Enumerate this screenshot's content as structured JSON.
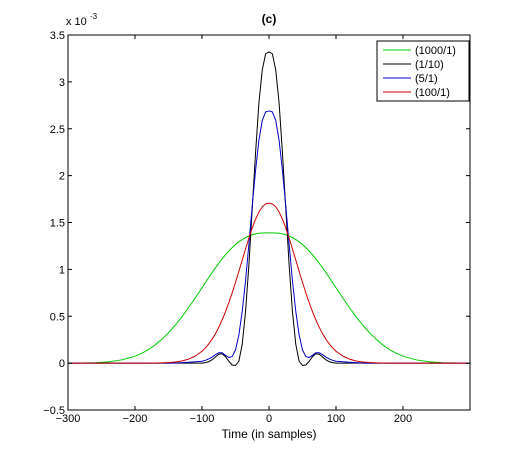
{
  "chart_data": {
    "type": "line",
    "title": "(c)",
    "xlabel": "Time (in samples)",
    "ylabel": "",
    "y_multiplier": {
      "base": "x 10",
      "exponent": "-3"
    },
    "xlim": [
      -300,
      300
    ],
    "ylim": [
      -0.5,
      3.5
    ],
    "x_ticks": [
      -300,
      -200,
      -100,
      0,
      100,
      200
    ],
    "x_tick_labels": [
      "−300",
      "−200",
      "−100",
      "0",
      "100",
      "200"
    ],
    "y_ticks": [
      -0.5,
      0,
      0.5,
      1,
      1.5,
      2,
      2.5,
      3,
      3.5
    ],
    "y_tick_labels": [
      "−0.5",
      "0",
      "0.5",
      "1",
      "1.5",
      "2",
      "2.5",
      "3",
      "3.5"
    ],
    "grid": false,
    "legend_position": "top-right",
    "x": [
      -300,
      -280,
      -260,
      -240,
      -220,
      -200,
      -190,
      -180,
      -170,
      -160,
      -150,
      -140,
      -130,
      -120,
      -110,
      -100,
      -95,
      -90,
      -85,
      -80,
      -75,
      -70,
      -65,
      -60,
      -55,
      -50,
      -45,
      -40,
      -35,
      -30,
      -25,
      -20,
      -15,
      -10,
      -5,
      0,
      5,
      10,
      15,
      20,
      25,
      30,
      35,
      40,
      45,
      50,
      55,
      60,
      65,
      70,
      75,
      80,
      85,
      90,
      95,
      100,
      110,
      120,
      130,
      140,
      150,
      160,
      170,
      180,
      190,
      200,
      220,
      240,
      260,
      280,
      300
    ],
    "series": [
      {
        "name": "(1000/1)",
        "color": "#00cc00",
        "values": [
          0.0002,
          0.001,
          0.004,
          0.013,
          0.034,
          0.074,
          0.105,
          0.144,
          0.194,
          0.254,
          0.324,
          0.404,
          0.494,
          0.592,
          0.696,
          0.804,
          0.858,
          0.912,
          0.965,
          1.016,
          1.065,
          1.112,
          1.155,
          1.195,
          1.232,
          1.265,
          1.294,
          1.318,
          1.339,
          1.356,
          1.369,
          1.379,
          1.385,
          1.388,
          1.389,
          1.389,
          1.389,
          1.388,
          1.385,
          1.379,
          1.369,
          1.356,
          1.339,
          1.318,
          1.294,
          1.265,
          1.232,
          1.195,
          1.155,
          1.112,
          1.065,
          1.016,
          0.965,
          0.912,
          0.858,
          0.804,
          0.696,
          0.592,
          0.494,
          0.404,
          0.324,
          0.254,
          0.194,
          0.144,
          0.105,
          0.074,
          0.034,
          0.013,
          0.004,
          0.001,
          0.0002
        ]
      },
      {
        "name": "(1/10)",
        "color": "#000000",
        "values": [
          0,
          0,
          0,
          0,
          0,
          0,
          0,
          0,
          0,
          0,
          0,
          0,
          0,
          0,
          0,
          0,
          0.005,
          0.015,
          0.035,
          0.065,
          0.095,
          0.1,
          0.07,
          0.02,
          -0.02,
          -0.025,
          0.02,
          0.2,
          0.55,
          1.05,
          1.65,
          2.25,
          2.78,
          3.13,
          3.3,
          3.32,
          3.3,
          3.13,
          2.78,
          2.25,
          1.65,
          1.05,
          0.55,
          0.2,
          0.02,
          -0.025,
          -0.02,
          0.02,
          0.07,
          0.1,
          0.095,
          0.065,
          0.035,
          0.015,
          0.005,
          0,
          0,
          0,
          0,
          0,
          0,
          0,
          0,
          0,
          0,
          0,
          0,
          0,
          0,
          0,
          0
        ]
      },
      {
        "name": "(5/1)",
        "color": "#0000cc",
        "values": [
          0,
          0,
          0,
          0,
          0,
          0,
          0,
          0,
          0,
          0,
          0,
          0.002,
          0.005,
          0.01,
          0.015,
          0.02,
          0.03,
          0.045,
          0.065,
          0.09,
          0.11,
          0.11,
          0.085,
          0.06,
          0.07,
          0.14,
          0.3,
          0.55,
          0.88,
          1.27,
          1.68,
          2.06,
          2.38,
          2.59,
          2.68,
          2.69,
          2.68,
          2.59,
          2.38,
          2.06,
          1.68,
          1.27,
          0.88,
          0.55,
          0.3,
          0.14,
          0.07,
          0.06,
          0.085,
          0.11,
          0.11,
          0.09,
          0.065,
          0.045,
          0.03,
          0.02,
          0.015,
          0.01,
          0.005,
          0.002,
          0,
          0,
          0,
          0,
          0,
          0,
          0,
          0,
          0,
          0,
          0
        ]
      },
      {
        "name": "(100/1)",
        "color": "#cc0000",
        "values": [
          0,
          0,
          0,
          0,
          0,
          0,
          0,
          0,
          0.001,
          0.003,
          0.006,
          0.012,
          0.023,
          0.043,
          0.076,
          0.127,
          0.162,
          0.204,
          0.254,
          0.313,
          0.382,
          0.46,
          0.547,
          0.644,
          0.749,
          0.861,
          0.979,
          1.099,
          1.219,
          1.335,
          1.442,
          1.536,
          1.613,
          1.668,
          1.699,
          1.706,
          1.699,
          1.668,
          1.613,
          1.536,
          1.442,
          1.335,
          1.219,
          1.099,
          0.979,
          0.861,
          0.749,
          0.644,
          0.547,
          0.46,
          0.382,
          0.313,
          0.254,
          0.204,
          0.162,
          0.127,
          0.076,
          0.043,
          0.023,
          0.012,
          0.006,
          0.003,
          0.001,
          0,
          0,
          0,
          0,
          0,
          0,
          0,
          0
        ]
      }
    ],
    "legend_order": [
      0,
      1,
      2,
      3
    ]
  }
}
